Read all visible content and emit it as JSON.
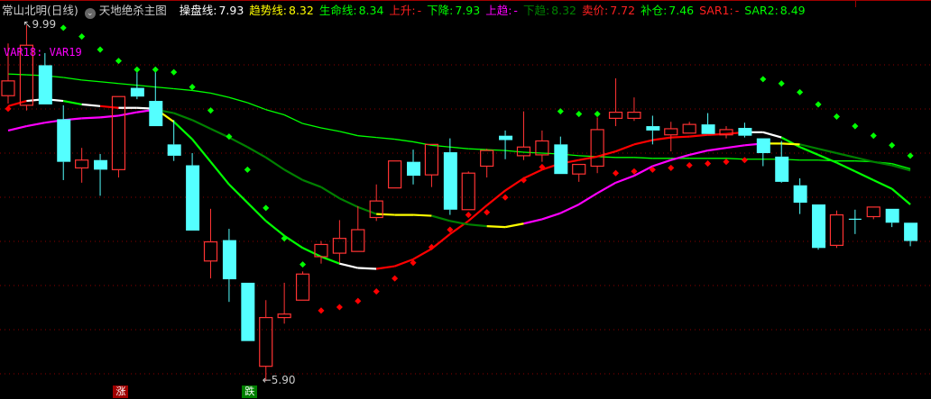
{
  "header": {
    "stock": "常山北明(日线)",
    "indicator": "天地绝杀主图",
    "items": [
      {
        "label": "操盘线:",
        "value": "7.93",
        "color": "#ffffff"
      },
      {
        "label": "趋势线:",
        "value": "8.32",
        "color": "#ffff00"
      },
      {
        "label": "生命线:",
        "value": "8.34",
        "color": "#00ff00"
      },
      {
        "label": "上升:",
        "value": "-",
        "color": "#ff2020"
      },
      {
        "label": "下降:",
        "value": "7.93",
        "color": "#00ff00"
      },
      {
        "label": "上趋:",
        "value": "-",
        "color": "#ff00ff"
      },
      {
        "label": "下趋:",
        "value": "8.32",
        "color": "#008000"
      },
      {
        "label": "卖价:",
        "value": "7.72",
        "color": "#ff2020"
      },
      {
        "label": "补仓:",
        "value": "7.46",
        "color": "#00ff00"
      },
      {
        "label": "SAR1:",
        "value": "-",
        "color": "#ff2020"
      },
      {
        "label": "SAR2:",
        "value": "8.49",
        "color": "#00ff00"
      }
    ]
  },
  "var_label": "VAR18: VAR19",
  "high_label": "9.99",
  "low_label": "5.90",
  "signals": [
    {
      "text": "涨",
      "index": 6,
      "color": "#a00000"
    },
    {
      "text": "跌",
      "index": 13,
      "color": "#008000"
    }
  ],
  "colors": {
    "up": "#ff3333",
    "down": "#54ffff",
    "grid": "#8b0000"
  },
  "chart_data": {
    "type": "candlestick",
    "ylim": [
      5.9,
      9.99
    ],
    "grid": true,
    "ohlc": [
      [
        9.18,
        9.78,
        9.09,
        9.35
      ],
      [
        9.07,
        9.99,
        9.01,
        9.76
      ],
      [
        9.53,
        9.67,
        9.08,
        9.08
      ],
      [
        8.91,
        9.07,
        8.21,
        8.42
      ],
      [
        8.35,
        8.58,
        8.18,
        8.44
      ],
      [
        8.44,
        8.51,
        8.03,
        8.33
      ],
      [
        8.33,
        9.17,
        8.24,
        9.17
      ],
      [
        9.27,
        9.48,
        9.14,
        9.17
      ],
      [
        9.12,
        9.48,
        8.83,
        8.83
      ],
      [
        8.62,
        8.9,
        8.43,
        8.49
      ],
      [
        8.38,
        8.52,
        7.63,
        7.63
      ],
      [
        7.28,
        7.88,
        7.08,
        7.5
      ],
      [
        7.52,
        7.65,
        6.81,
        7.07
      ],
      [
        7.03,
        7.03,
        6.36,
        6.36
      ],
      [
        6.07,
        6.83,
        5.9,
        6.63
      ],
      [
        6.63,
        7.03,
        6.56,
        6.67
      ],
      [
        6.83,
        7.16,
        6.83,
        7.13
      ],
      [
        7.33,
        7.51,
        7.25,
        7.47
      ],
      [
        7.37,
        7.75,
        7.26,
        7.54
      ],
      [
        7.39,
        7.91,
        7.39,
        7.64
      ],
      [
        7.78,
        8.16,
        7.74,
        7.97
      ],
      [
        8.12,
        8.43,
        8.12,
        8.43
      ],
      [
        8.42,
        8.56,
        8.16,
        8.26
      ],
      [
        8.27,
        8.62,
        8.13,
        8.62
      ],
      [
        8.53,
        8.69,
        7.81,
        7.87
      ],
      [
        7.87,
        8.31,
        7.87,
        8.29
      ],
      [
        8.37,
        8.57,
        8.24,
        8.55
      ],
      [
        8.72,
        8.78,
        8.45,
        8.67
      ],
      [
        8.49,
        9.0,
        8.44,
        8.59
      ],
      [
        8.5,
        8.78,
        8.42,
        8.66
      ],
      [
        8.62,
        8.71,
        8.28,
        8.28
      ],
      [
        8.28,
        8.39,
        8.19,
        8.39
      ],
      [
        8.37,
        8.93,
        8.29,
        8.79
      ],
      [
        8.92,
        9.38,
        8.83,
        8.99
      ],
      [
        8.92,
        9.16,
        8.89,
        8.99
      ],
      [
        8.83,
        8.95,
        8.62,
        8.78
      ],
      [
        8.73,
        8.88,
        8.54,
        8.8
      ],
      [
        8.75,
        8.88,
        8.75,
        8.85
      ],
      [
        8.85,
        8.98,
        8.74,
        8.74
      ],
      [
        8.73,
        8.83,
        8.69,
        8.79
      ],
      [
        8.81,
        8.87,
        8.7,
        8.72
      ],
      [
        8.69,
        8.69,
        8.37,
        8.52
      ],
      [
        8.48,
        8.66,
        8.18,
        8.19
      ],
      [
        8.15,
        8.23,
        7.82,
        7.95
      ],
      [
        7.93,
        7.93,
        7.41,
        7.43
      ],
      [
        7.46,
        7.86,
        7.43,
        7.81
      ],
      [
        7.76,
        7.87,
        7.59,
        7.76
      ],
      [
        7.79,
        7.9,
        7.76,
        7.9
      ],
      [
        7.88,
        7.88,
        7.67,
        7.72
      ],
      [
        7.72,
        7.72,
        7.45,
        7.51
      ]
    ],
    "series": [
      {
        "name": "生命线",
        "color": "#00ff00",
        "values": [
          9.43,
          9.42,
          9.41,
          9.39,
          9.36,
          9.34,
          9.32,
          9.3,
          9.28,
          9.26,
          9.24,
          9.21,
          9.16,
          9.1,
          9.02,
          8.96,
          8.86,
          8.81,
          8.77,
          8.72,
          8.7,
          8.68,
          8.65,
          8.61,
          8.59,
          8.57,
          8.56,
          8.55,
          8.53,
          8.52,
          8.51,
          8.49,
          8.48,
          8.47,
          8.47,
          8.46,
          8.46,
          8.46,
          8.46,
          8.46,
          8.45,
          8.45,
          8.45,
          8.44,
          8.44,
          8.43,
          8.43,
          8.42,
          8.4,
          8.34
        ]
      },
      {
        "name": "操盘线",
        "segment_colors": [
          "#ff0000",
          "#ffffff",
          "#ffffff",
          "#00ff00",
          "#ffffff",
          "#ff0000",
          "#ffffff",
          "#ffffff",
          "#ffff00",
          "#00ff00",
          "#00ff00",
          "#00ff00",
          "#00ff00",
          "#00ff00",
          "#00ff00",
          "#00ff00",
          "#00ff00",
          "#00ff00",
          "#ffffff",
          "#ffffff",
          "#ff0000",
          "#ff0000",
          "#ff0000",
          "#ff0000",
          "#ff0000",
          "#ff0000",
          "#ff0000",
          "#ff0000",
          "#ff0000",
          "#ff0000",
          "#ff0000",
          "#ff0000",
          "#ff0000",
          "#ff0000",
          "#ff0000",
          "#ff0000",
          "#ff0000",
          "#ff0000",
          "#ff0000",
          "#ff0000",
          "#ffffff",
          "#ffffff",
          "#00ff00",
          "#00ff00",
          "#00ff00",
          "#00ff00",
          "#00ff00",
          "#00ff00",
          "#00ff00"
        ],
        "values": [
          9.06,
          9.12,
          9.14,
          9.12,
          9.08,
          9.06,
          9.04,
          9.04,
          9.03,
          8.88,
          8.68,
          8.42,
          8.16,
          7.95,
          7.74,
          7.57,
          7.43,
          7.33,
          7.25,
          7.2,
          7.19,
          7.22,
          7.3,
          7.42,
          7.59,
          7.74,
          7.92,
          8.09,
          8.23,
          8.33,
          8.4,
          8.44,
          8.48,
          8.54,
          8.62,
          8.67,
          8.7,
          8.71,
          8.73,
          8.74,
          8.76,
          8.76,
          8.7,
          8.59,
          8.5,
          8.41,
          8.31,
          8.21,
          8.11,
          7.93
        ]
      },
      {
        "name": "趋势线",
        "segment_colors": [
          "#ff00ff",
          "#ff00ff",
          "#ff00ff",
          "#ff00ff",
          "#ff00ff",
          "#ff00ff",
          "#ff00ff",
          "#ff00ff",
          "#008000",
          "#008000",
          "#008000",
          "#008000",
          "#008000",
          "#008000",
          "#008000",
          "#008000",
          "#008000",
          "#008000",
          "#008000",
          "#008000",
          "#ffff00",
          "#ffff00",
          "#ffff00",
          "#008000",
          "#008000",
          "#008000",
          "#ffff00",
          "#ffff00",
          "#ff00ff",
          "#ff00ff",
          "#ff00ff",
          "#ff00ff",
          "#ff00ff",
          "#ff00ff",
          "#ff00ff",
          "#ff00ff",
          "#ff00ff",
          "#ff00ff",
          "#ff00ff",
          "#ff00ff",
          "#ff00ff",
          "#ffff00",
          "#ffff00",
          "#008000",
          "#008000",
          "#008000",
          "#008000",
          "#008000",
          "#008000"
        ],
        "values": [
          8.78,
          8.83,
          8.87,
          8.9,
          8.92,
          8.93,
          8.95,
          8.99,
          9.02,
          8.98,
          8.9,
          8.8,
          8.7,
          8.59,
          8.47,
          8.33,
          8.21,
          8.13,
          8.0,
          7.9,
          7.82,
          7.81,
          7.81,
          7.8,
          7.74,
          7.7,
          7.68,
          7.67,
          7.71,
          7.76,
          7.83,
          7.93,
          8.06,
          8.18,
          8.26,
          8.37,
          8.44,
          8.5,
          8.55,
          8.58,
          8.61,
          8.63,
          8.63,
          8.62,
          8.57,
          8.52,
          8.47,
          8.42,
          8.38,
          8.32
        ]
      }
    ],
    "sar": {
      "values": [
        9.03,
        null,
        null,
        9.96,
        9.86,
        9.71,
        9.58,
        9.48,
        9.48,
        9.45,
        9.28,
        9.01,
        8.71,
        8.33,
        7.89,
        7.54,
        7.24,
        6.71,
        6.75,
        6.82,
        6.93,
        7.08,
        7.26,
        7.44,
        7.64,
        7.81,
        7.84,
        8.01,
        8.21,
        8.36,
        9.0,
        8.97,
        8.97,
        8.29,
        8.31,
        8.33,
        8.35,
        8.38,
        8.4,
        8.42,
        8.44,
        9.37,
        9.32,
        9.22,
        9.08,
        8.94,
        8.83,
        8.72,
        8.61,
        8.49
      ],
      "side": [
        "below",
        "",
        "",
        "above",
        "above",
        "above",
        "above",
        "above",
        "above",
        "above",
        "above",
        "above",
        "above",
        "above",
        "above",
        "above",
        "above",
        "below",
        "below",
        "below",
        "below",
        "below",
        "below",
        "below",
        "below",
        "below",
        "below",
        "below",
        "below",
        "below",
        "above",
        "above",
        "above",
        "below",
        "below",
        "below",
        "below",
        "below",
        "below",
        "below",
        "below",
        "above",
        "above",
        "above",
        "above",
        "above",
        "above",
        "above",
        "above",
        "above"
      ]
    }
  }
}
